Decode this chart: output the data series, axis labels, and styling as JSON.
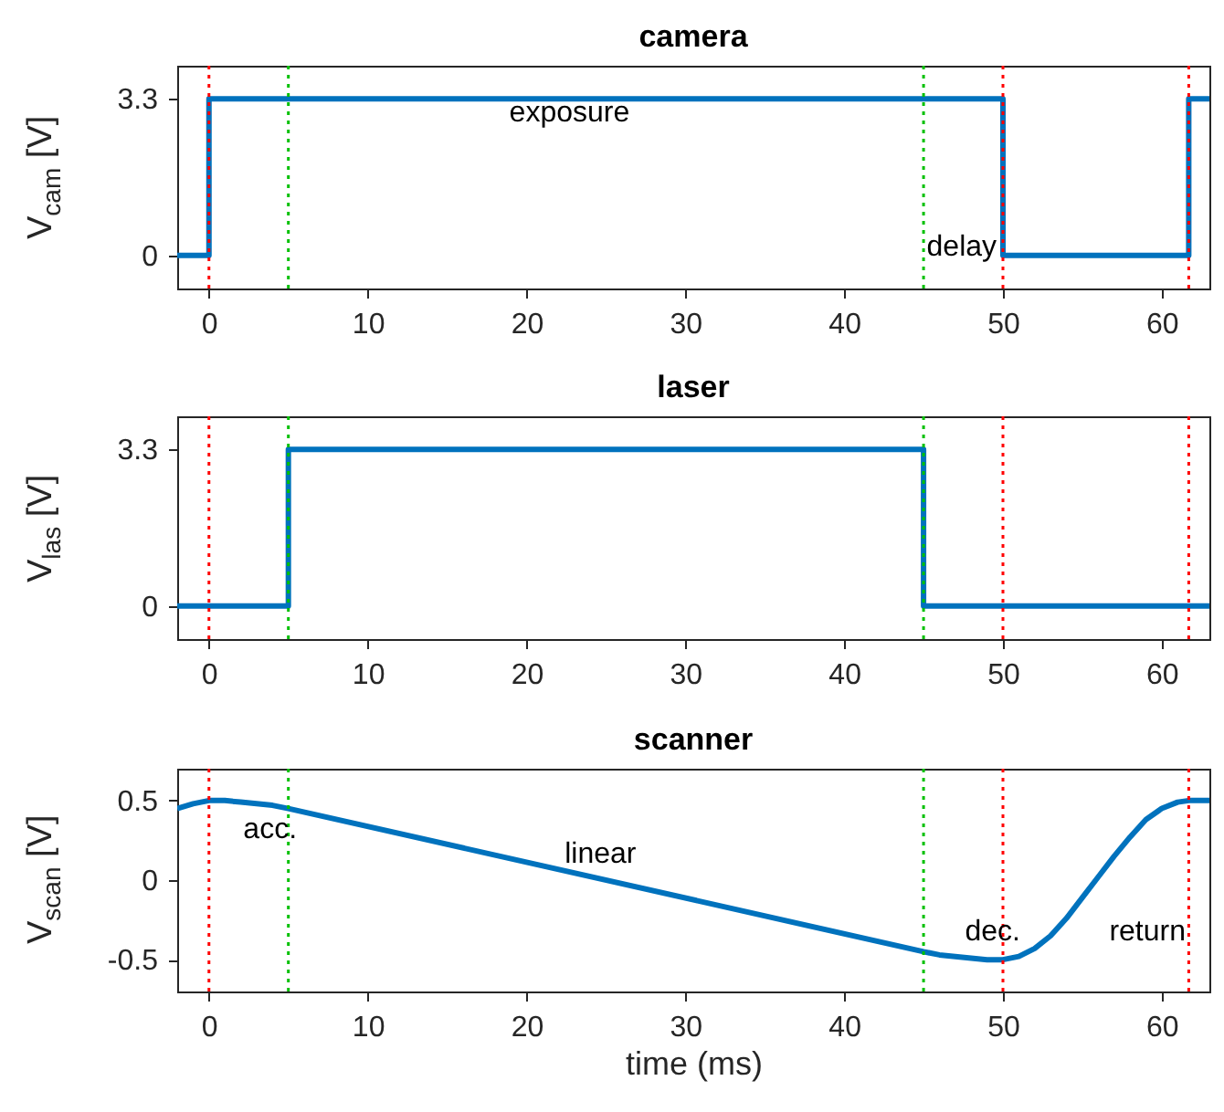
{
  "chart_data": [
    {
      "type": "line",
      "title": "camera",
      "ylabel": "V$_{cam}$ [V]",
      "xlim": [
        -2,
        63
      ],
      "xticks": [
        0,
        10,
        20,
        30,
        40,
        50,
        60
      ],
      "ylim": [
        -0.7,
        4
      ],
      "yticks": [
        0,
        3.3
      ],
      "grid": false,
      "tick_labels": "xy",
      "series": [
        {
          "color": "#0072bd",
          "x": [
            -2,
            0,
            0,
            50,
            50,
            61.7,
            61.7,
            63
          ],
          "values": [
            0,
            0,
            3.3,
            3.3,
            0,
            0,
            3.3,
            3.3
          ]
        }
      ],
      "ref_lines": [
        {
          "axis": "x",
          "value": 0,
          "color": "#ff0000",
          "line_style": "dotted"
        },
        {
          "axis": "x",
          "value": 5,
          "color": "#00c000",
          "line_style": "dotted"
        },
        {
          "axis": "x",
          "value": 45,
          "color": "#00c000",
          "line_style": "dotted"
        },
        {
          "axis": "x",
          "value": 50,
          "color": "#ff0000",
          "line_style": "dotted"
        },
        {
          "axis": "x",
          "value": 61.7,
          "color": "#ff0000",
          "line_style": "dotted"
        }
      ],
      "annotations": [
        "exposure",
        "delay"
      ]
    },
    {
      "type": "line",
      "title": "laser",
      "ylabel": "V$_{las}$ [V]",
      "xlim": [
        -2,
        63
      ],
      "xticks": [
        0,
        10,
        20,
        30,
        40,
        50,
        60
      ],
      "ylim": [
        -0.7,
        4
      ],
      "yticks": [
        0,
        3.3
      ],
      "grid": false,
      "series": [
        {
          "color": "#0072bd",
          "x": [
            -2,
            5,
            5,
            45,
            45,
            63
          ],
          "values": [
            0,
            0,
            3.3,
            3.3,
            0,
            0
          ]
        }
      ],
      "ref_lines": [
        {
          "axis": "x",
          "value": 0,
          "color": "#ff0000",
          "line_style": "dotted"
        },
        {
          "axis": "x",
          "value": 5,
          "color": "#00c000",
          "line_style": "dotted"
        },
        {
          "axis": "x",
          "value": 45,
          "color": "#00c000",
          "line_style": "dotted"
        },
        {
          "axis": "x",
          "value": 50,
          "color": "#ff0000",
          "line_style": "dotted"
        },
        {
          "axis": "x",
          "value": 61.7,
          "color": "#ff0000",
          "line_style": "dotted"
        }
      ]
    },
    {
      "type": "line",
      "title": "scanner",
      "xlabel": "time (ms)",
      "ylabel": "V$_{scan}$ [V]",
      "xlim": [
        -2,
        63
      ],
      "xticks": [
        0,
        10,
        20,
        30,
        40,
        50,
        60
      ],
      "ylim": [
        -0.7,
        0.7
      ],
      "yticks": [
        -0.5,
        0,
        0.5
      ],
      "grid": false,
      "series": [
        {
          "color": "#0072bd",
          "x": [
            -2,
            -1,
            0,
            1,
            2,
            3,
            4,
            5,
            45,
            46,
            47,
            48,
            49,
            50,
            51,
            52,
            53,
            54,
            55,
            56,
            57,
            58,
            59,
            60,
            61,
            61.7,
            63
          ],
          "values": [
            0.45,
            0.48,
            0.5,
            0.5,
            0.49,
            0.48,
            0.47,
            0.45,
            -0.45,
            -0.47,
            -0.48,
            -0.49,
            -0.5,
            -0.5,
            -0.48,
            -0.43,
            -0.35,
            -0.24,
            -0.11,
            0.02,
            0.15,
            0.27,
            0.38,
            0.45,
            0.49,
            0.5,
            0.5
          ]
        }
      ],
      "ref_lines": [
        {
          "axis": "x",
          "value": 0,
          "color": "#ff0000",
          "line_style": "dotted"
        },
        {
          "axis": "x",
          "value": 5,
          "color": "#00c000",
          "line_style": "dotted"
        },
        {
          "axis": "x",
          "value": 45,
          "color": "#00c000",
          "line_style": "dotted"
        },
        {
          "axis": "x",
          "value": 50,
          "color": "#ff0000",
          "line_style": "dotted"
        },
        {
          "axis": "x",
          "value": 61.7,
          "color": "#ff0000",
          "line_style": "dotted"
        }
      ],
      "annotations": [
        "acc.",
        "linear",
        "dec.",
        "return"
      ]
    }
  ]
}
